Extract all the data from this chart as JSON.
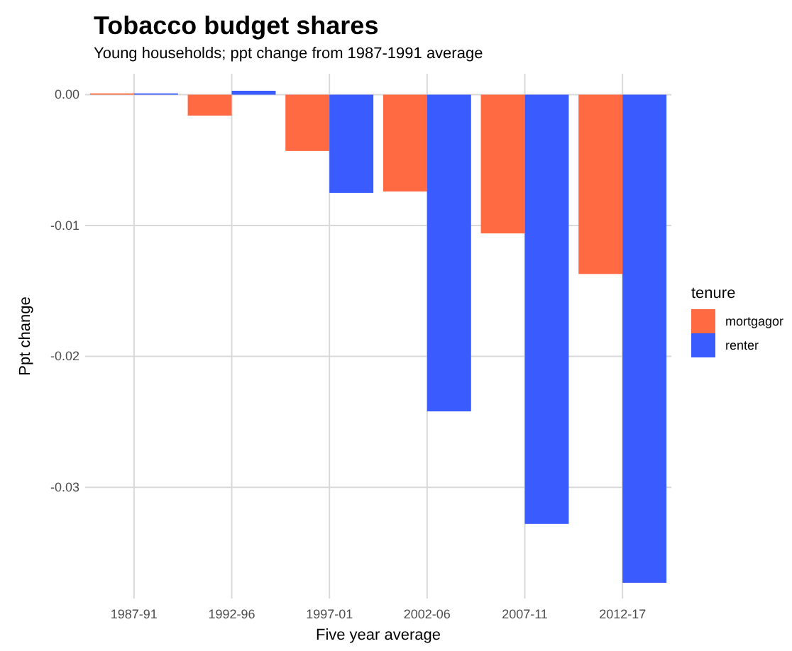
{
  "chart_data": {
    "type": "bar",
    "title": "Tobacco budget shares",
    "subtitle": "Young households; ppt change from 1987-1991 average",
    "xlabel": "Five year average",
    "ylabel": "Ppt change",
    "legend_title": "tenure",
    "categories": [
      "1987-91",
      "1992-96",
      "1997-01",
      "2002-06",
      "2007-11",
      "2012-17"
    ],
    "series": [
      {
        "name": "mortgagor",
        "color": "#ff6a42",
        "values": [
          0.0001,
          -0.0016,
          -0.0043,
          -0.0074,
          -0.0106,
          -0.0137
        ]
      },
      {
        "name": "renter",
        "color": "#3a5cff",
        "values": [
          0.0001,
          0.0003,
          -0.0075,
          -0.0242,
          -0.0328,
          -0.0373
        ]
      }
    ],
    "ylim": [
      -0.0385,
      0.0016
    ],
    "yticks": [
      {
        "value": 0,
        "label": "0.00"
      },
      {
        "value": -0.01,
        "label": "-0.01"
      },
      {
        "value": -0.02,
        "label": "-0.02"
      },
      {
        "value": -0.03,
        "label": "-0.03"
      }
    ],
    "grid": true,
    "legend": "right"
  }
}
